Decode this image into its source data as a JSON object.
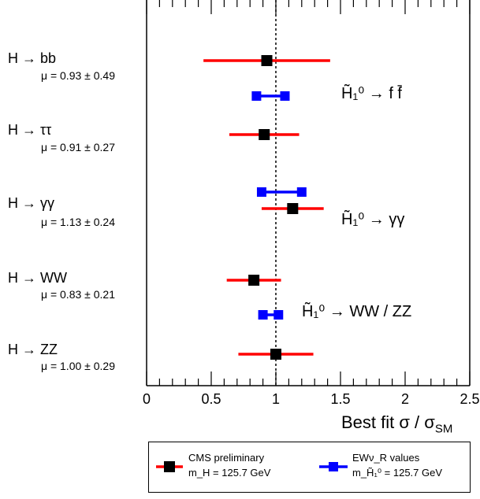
{
  "chart_data": {
    "type": "scatter",
    "xlim": [
      0,
      2.5
    ],
    "xticks": [
      "0",
      "0.5",
      "1",
      "1.5",
      "2",
      "2.5"
    ],
    "xlabel": "Best fit σ / σ",
    "xlabel_sub": "SM",
    "reference_line": 1,
    "grid": false,
    "legend_position": "bottom",
    "colors": {
      "cms": "#ff0000",
      "ew": "#0000ff",
      "marker_black": "#000000",
      "marker_blue": "#0000ff"
    },
    "categories": [
      {
        "label": "H → bb",
        "mu_text": "μ = 0.93 ± 0.49"
      },
      {
        "label": "H → ττ",
        "mu_text": "μ = 0.91 ± 0.27"
      },
      {
        "label": "H → γγ",
        "mu_text": "μ = 1.13 ± 0.24"
      },
      {
        "label": "H → WW",
        "mu_text": "μ = 0.83 ± 0.21"
      },
      {
        "label": "H → ZZ",
        "mu_text": "μ = 1.00 ± 0.29"
      }
    ],
    "series": [
      {
        "name": "CMS preliminary",
        "points": [
          {
            "label": "H → bb",
            "value": 0.93,
            "low": 0.44,
            "high": 1.42
          },
          {
            "label": "H → ττ",
            "value": 0.91,
            "low": 0.64,
            "high": 1.18
          },
          {
            "label": "H → γγ",
            "value": 1.13,
            "low": 0.89,
            "high": 1.37
          },
          {
            "label": "H → WW",
            "value": 0.83,
            "low": 0.62,
            "high": 1.04
          },
          {
            "label": "H → ZZ",
            "value": 1.0,
            "low": 0.71,
            "high": 1.29
          }
        ]
      },
      {
        "name": "EWν_R values",
        "points": [
          {
            "label": "H̃₁⁰ → f f̄",
            "low": 0.85,
            "high": 1.07
          },
          {
            "label": "H̃₁⁰ → γγ",
            "low": 0.89,
            "high": 1.2
          },
          {
            "label": "H̃₁⁰ → WW / ZZ",
            "low": 0.9,
            "high": 1.02
          }
        ]
      }
    ],
    "annotations": [
      {
        "text": "H̃₁⁰ → f f̄"
      },
      {
        "text": "H̃₁⁰ → γγ"
      },
      {
        "text": "H̃₁⁰ → WW / ZZ"
      }
    ],
    "legend": [
      {
        "line1": "CMS preliminary",
        "line2": "m_H = 125.7 GeV"
      },
      {
        "line1": "EWν_R values",
        "line2": "m_H̃₁⁰ = 125.7 GeV"
      }
    ]
  }
}
